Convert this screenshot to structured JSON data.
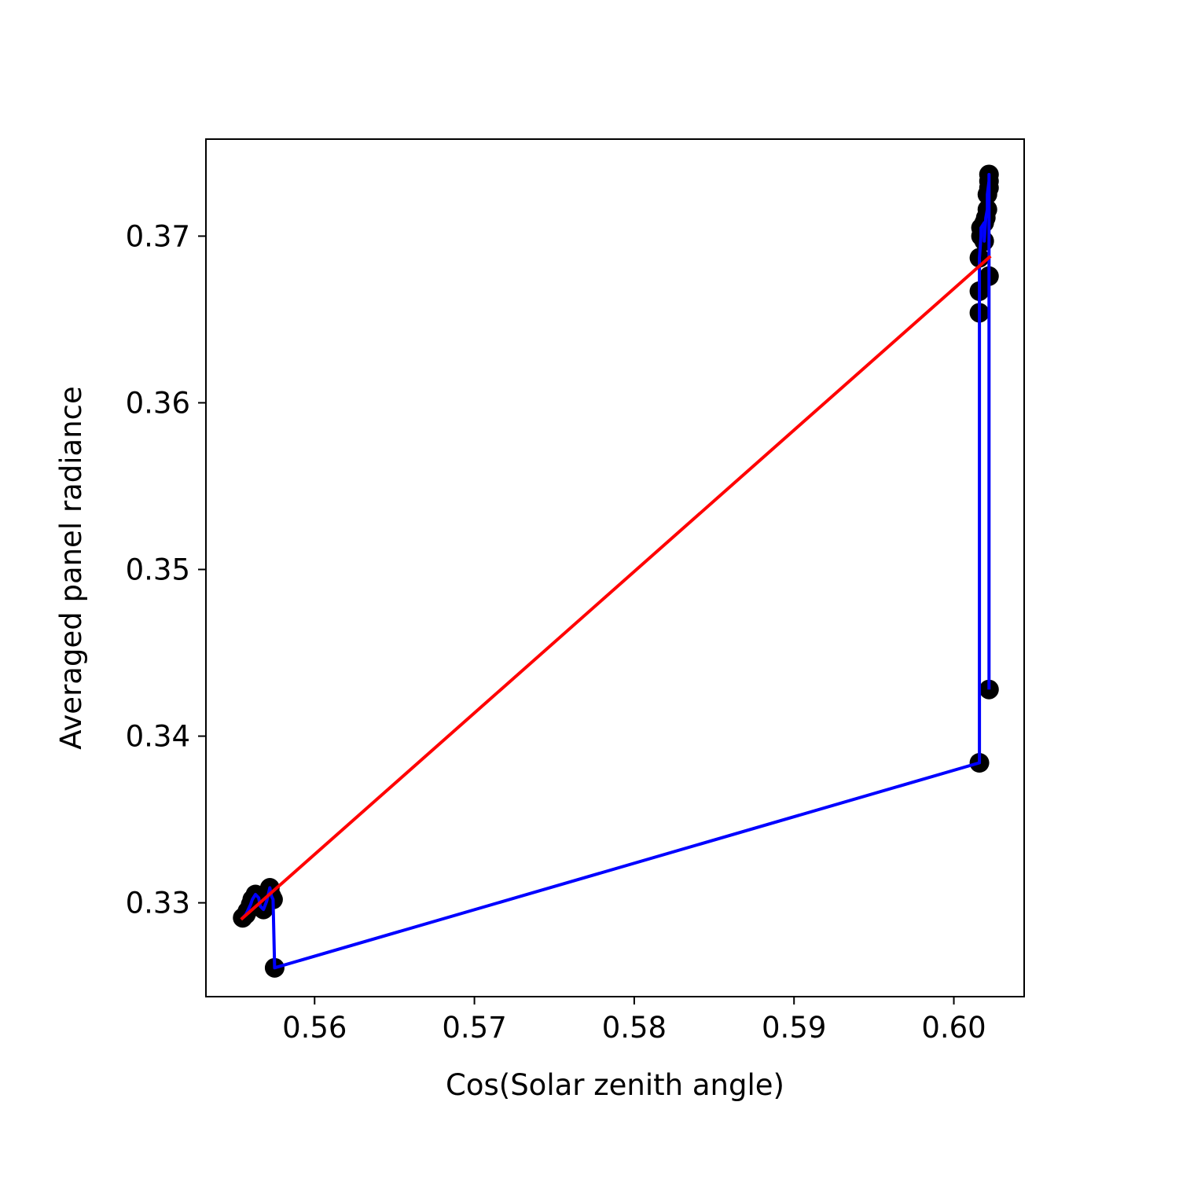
{
  "chart_data": {
    "type": "scatter",
    "title": "",
    "xlabel": "Cos(Solar zenith angle)",
    "ylabel": "Averaged panel radiance",
    "xlim": [
      0.5532,
      0.6044
    ],
    "ylim": [
      0.32437,
      0.37582
    ],
    "xticks": [
      {
        "value": 0.56,
        "label": "0.56"
      },
      {
        "value": 0.57,
        "label": "0.57"
      },
      {
        "value": 0.58,
        "label": "0.58"
      },
      {
        "value": 0.59,
        "label": "0.59"
      },
      {
        "value": 0.6,
        "label": "0.60"
      }
    ],
    "yticks": [
      {
        "value": 0.33,
        "label": "0.33"
      },
      {
        "value": 0.34,
        "label": "0.34"
      },
      {
        "value": 0.35,
        "label": "0.35"
      },
      {
        "value": 0.36,
        "label": "0.36"
      },
      {
        "value": 0.37,
        "label": "0.37"
      }
    ],
    "grid": false,
    "colors": {
      "points": "#000000",
      "trace": "#0000ff",
      "fit": "#ff0000",
      "frame": "#000000"
    },
    "series": [
      {
        "kind": "scatter",
        "color": "#000000",
        "points": [
          [
            0.5555,
            0.3291
          ],
          [
            0.5557,
            0.3293
          ],
          [
            0.5558,
            0.3295
          ],
          [
            0.556,
            0.3299
          ],
          [
            0.5561,
            0.3302
          ],
          [
            0.5563,
            0.3305
          ],
          [
            0.5565,
            0.3303
          ],
          [
            0.5566,
            0.3298
          ],
          [
            0.5568,
            0.3296
          ],
          [
            0.557,
            0.3301
          ],
          [
            0.5572,
            0.3309
          ],
          [
            0.5573,
            0.3304
          ],
          [
            0.5574,
            0.3302
          ],
          [
            0.5575,
            0.3261
          ],
          [
            0.6016,
            0.3384
          ],
          [
            0.6016,
            0.3654
          ],
          [
            0.6016,
            0.3667
          ],
          [
            0.6016,
            0.3687
          ],
          [
            0.6017,
            0.37
          ],
          [
            0.6017,
            0.3705
          ],
          [
            0.6019,
            0.3708
          ],
          [
            0.6019,
            0.3697
          ],
          [
            0.602,
            0.3711
          ],
          [
            0.6021,
            0.3716
          ],
          [
            0.6021,
            0.3725
          ],
          [
            0.6022,
            0.3733
          ],
          [
            0.6022,
            0.3737
          ],
          [
            0.6022,
            0.3729
          ],
          [
            0.6022,
            0.3676
          ],
          [
            0.6022,
            0.3428
          ]
        ]
      },
      {
        "kind": "line",
        "color": "#0000ff",
        "points": [
          [
            0.5555,
            0.3291
          ],
          [
            0.5557,
            0.3293
          ],
          [
            0.5558,
            0.3295
          ],
          [
            0.556,
            0.3299
          ],
          [
            0.5561,
            0.3302
          ],
          [
            0.5563,
            0.3305
          ],
          [
            0.5565,
            0.3303
          ],
          [
            0.5566,
            0.3298
          ],
          [
            0.5568,
            0.3296
          ],
          [
            0.557,
            0.3301
          ],
          [
            0.5572,
            0.3309
          ],
          [
            0.5573,
            0.3304
          ],
          [
            0.5574,
            0.3302
          ],
          [
            0.5575,
            0.3261
          ],
          [
            0.6016,
            0.3384
          ],
          [
            0.6016,
            0.3654
          ],
          [
            0.6016,
            0.3667
          ],
          [
            0.6016,
            0.3687
          ],
          [
            0.6017,
            0.37
          ],
          [
            0.6017,
            0.3705
          ],
          [
            0.6019,
            0.3708
          ],
          [
            0.6019,
            0.3697
          ],
          [
            0.602,
            0.3711
          ],
          [
            0.6021,
            0.3716
          ],
          [
            0.6021,
            0.3725
          ],
          [
            0.6022,
            0.3733
          ],
          [
            0.6022,
            0.3737
          ],
          [
            0.6022,
            0.3729
          ],
          [
            0.6022,
            0.3676
          ],
          [
            0.6022,
            0.3428
          ]
        ]
      },
      {
        "kind": "line",
        "color": "#ff0000",
        "points": [
          [
            0.5554,
            0.329
          ],
          [
            0.6023,
            0.3688
          ]
        ]
      }
    ]
  }
}
